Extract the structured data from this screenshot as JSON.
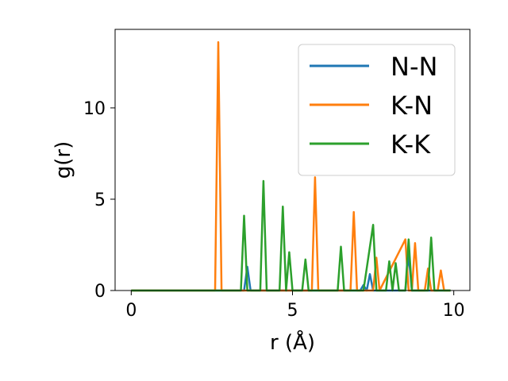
{
  "chart_data": {
    "type": "line",
    "title": "",
    "xlabel": "r (Å)",
    "ylabel": "g(r)",
    "xlim": [
      -0.5,
      10.5
    ],
    "ylim": [
      0,
      14.3
    ],
    "xticks": [
      0,
      5,
      10
    ],
    "yticks": [
      0,
      5,
      10
    ],
    "grid": false,
    "legend_position": "top-right",
    "series": [
      {
        "name": "N-N",
        "color": "#1f77b4",
        "x": [
          0,
          3.5,
          3.6,
          3.7,
          7.1,
          7.2,
          7.3,
          7.4,
          7.5,
          7.6,
          8.5,
          8.6,
          8.7,
          9.9
        ],
        "y": [
          0,
          0,
          1.3,
          0,
          0,
          0.3,
          0,
          0.9,
          0,
          0,
          0,
          2.0,
          0,
          0
        ]
      },
      {
        "name": "K-N",
        "color": "#ff7f0e",
        "x": [
          0,
          2.6,
          2.7,
          2.8,
          5.6,
          5.7,
          5.8,
          6.8,
          6.9,
          7.0,
          7.5,
          7.6,
          7.7,
          8.5,
          8.6,
          8.7,
          8.8,
          8.9,
          9.1,
          9.2,
          9.3,
          9.5,
          9.6,
          9.7,
          9.9
        ],
        "y": [
          0,
          0,
          13.6,
          0,
          0,
          6.2,
          0,
          0,
          4.3,
          0,
          0,
          1.8,
          0,
          2.8,
          0,
          0,
          2.6,
          0,
          0,
          1.2,
          0,
          0,
          1.1,
          0,
          0
        ]
      },
      {
        "name": "K-K",
        "color": "#2ca02c",
        "x": [
          0,
          3.4,
          3.5,
          3.6,
          4.0,
          4.1,
          4.2,
          4.6,
          4.7,
          4.8,
          4.9,
          5.0,
          5.3,
          5.4,
          5.5,
          6.4,
          6.5,
          6.6,
          7.2,
          7.5,
          7.6,
          7.9,
          8.0,
          8.1,
          8.2,
          8.3,
          8.5,
          8.6,
          8.7,
          9.2,
          9.3,
          9.4,
          9.9
        ],
        "y": [
          0,
          0,
          4.1,
          0,
          0,
          6.0,
          0,
          0,
          4.6,
          0,
          2.1,
          0,
          0,
          1.7,
          0,
          0,
          2.4,
          0,
          0,
          3.6,
          0,
          0,
          1.6,
          0,
          1.5,
          0,
          0,
          2.8,
          0,
          0,
          2.9,
          0,
          0
        ]
      }
    ]
  }
}
